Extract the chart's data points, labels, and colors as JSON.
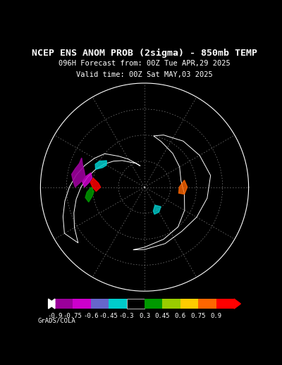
{
  "title_line1": "NCEP ENS ANOM PROB (2sigma) - 850mb TEMP",
  "title_line2": "096H Forecast from: 00Z Tue APR,29 2025",
  "title_line3": "Valid time: 00Z Sat MAY,03 2025",
  "colorbar_values": [
    "-0.9",
    "-0.75",
    "-0.6",
    "-0.45",
    "-0.3",
    "0.3",
    "0.45",
    "0.6",
    "0.75",
    "0.9"
  ],
  "colorbar_colors": [
    "#9b009b",
    "#cc00cc",
    "#6666cc",
    "#00cccc",
    "#000000",
    "#009900",
    "#99cc00",
    "#ffcc00",
    "#ff6600",
    "#ff0000"
  ],
  "colorbar_segment_colors": [
    "#ff0000",
    "#ff6600",
    "#ffcc00",
    "#99cc00",
    "#009900",
    "#000000",
    "#00cccc",
    "#6666cc",
    "#cc00cc",
    "#9b009b"
  ],
  "background_color": "#000000",
  "text_color": "#ffffff",
  "watermark": "GrADS/COLA",
  "fig_width": 4.0,
  "fig_height": 5.18,
  "dpi": 100
}
